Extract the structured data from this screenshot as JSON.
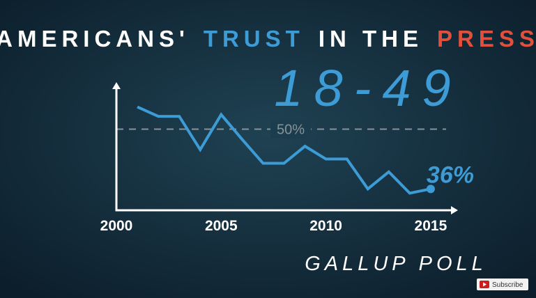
{
  "chart_data": {
    "type": "line",
    "title_parts": [
      {
        "text": "AMERICANS'",
        "color": "#ffffff"
      },
      {
        "text": "TRUST",
        "color": "#3d9bd6"
      },
      {
        "text": "IN THE",
        "color": "#ffffff"
      },
      {
        "text": "PRESS",
        "color": "#e0503c"
      }
    ],
    "subtitle": "18-49",
    "source": "GALLUP POLL",
    "x": [
      2001,
      2002,
      2003,
      2004,
      2005,
      2006,
      2007,
      2008,
      2009,
      2010,
      2011,
      2012,
      2013,
      2014,
      2015
    ],
    "values": [
      55.2,
      53,
      53,
      45.2,
      53.4,
      47.6,
      42,
      42,
      46,
      43,
      43,
      36,
      40,
      35,
      36
    ],
    "value_labels": [
      null,
      null,
      null,
      null,
      null,
      null,
      null,
      null,
      null,
      null,
      null,
      null,
      null,
      null,
      "36%"
    ],
    "color": "#3d9bd6",
    "xlim": [
      2000,
      2016.3
    ],
    "ylim": [
      31,
      61
    ],
    "xticks": [
      2000,
      2005,
      2010,
      2015
    ],
    "reference_line": {
      "value": 50,
      "label": "50%"
    }
  },
  "overlay": {
    "button": "Subscribe"
  }
}
